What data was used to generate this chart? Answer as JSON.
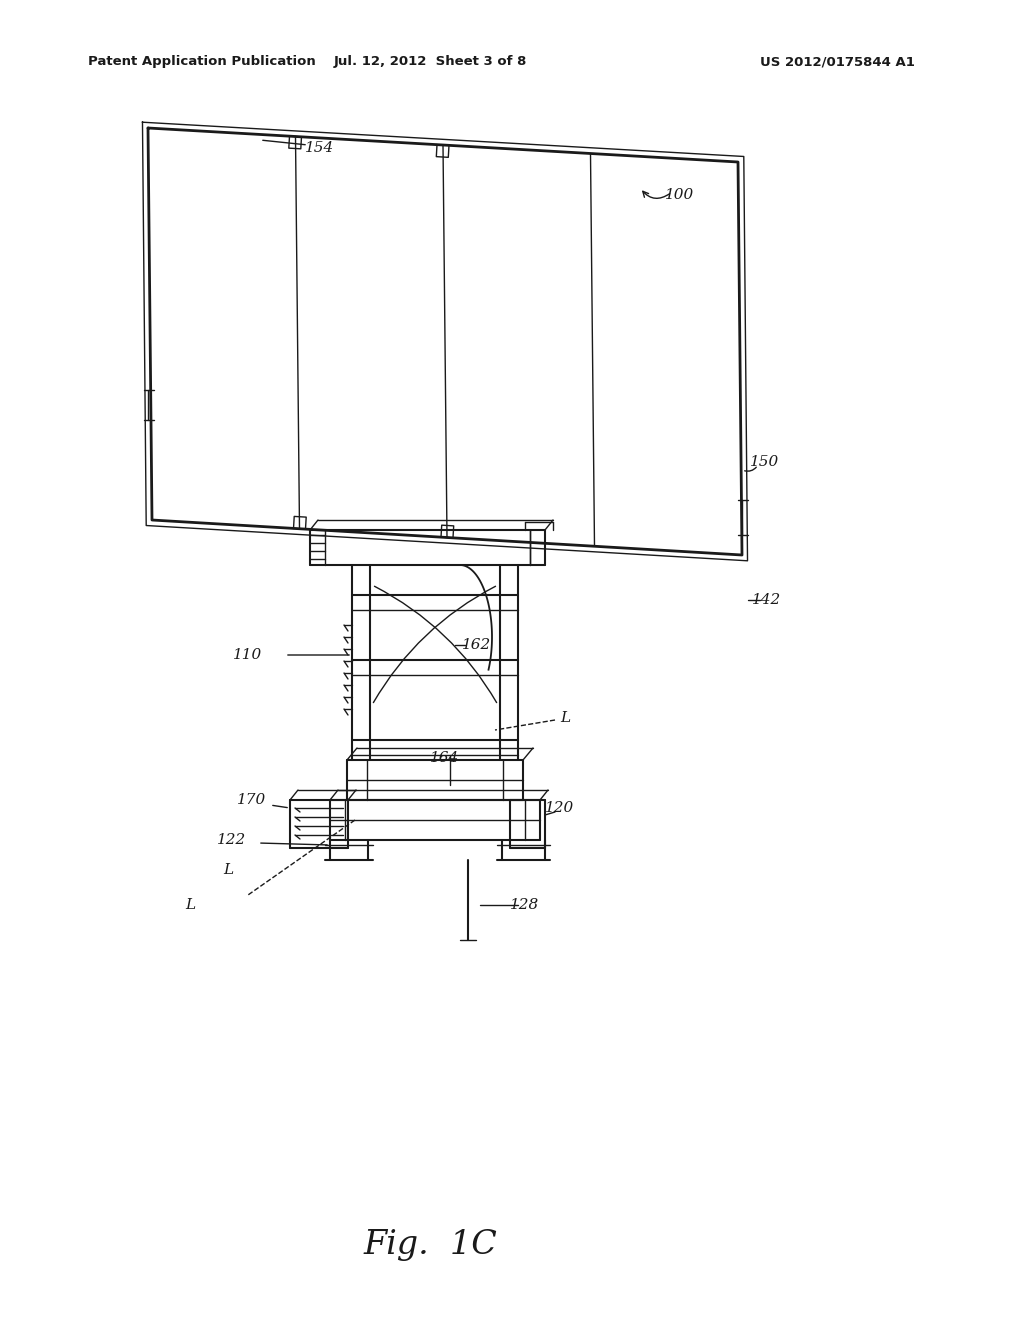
{
  "bg_color": "#ffffff",
  "header_left": "Patent Application Publication",
  "header_mid": "Jul. 12, 2012  Sheet 3 of 8",
  "header_right": "US 2012/0175844 A1",
  "caption": "Fig.  1C",
  "fig_width": 10.24,
  "fig_height": 13.2,
  "dpi": 100
}
